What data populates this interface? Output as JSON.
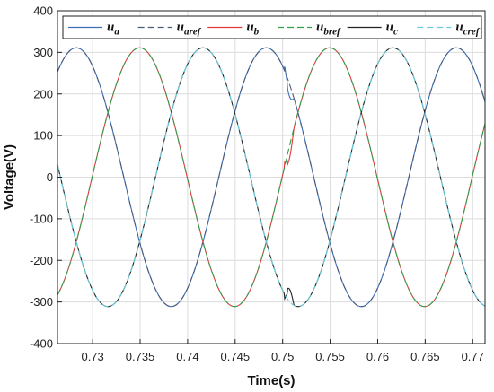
{
  "chart_data": {
    "type": "line",
    "xlabel": "Time(s)",
    "ylabel": "Voltage(V)",
    "xlim": [
      0.7263,
      0.7713
    ],
    "ylim": [
      -400,
      400
    ],
    "x_ticks": [
      "0.73",
      "0.735",
      "0.74",
      "0.745",
      "0.75",
      "0.755",
      "0.76",
      "0.765",
      "0.77"
    ],
    "x_tick_values": [
      0.73,
      0.735,
      0.74,
      0.745,
      0.75,
      0.755,
      0.76,
      0.765,
      0.77
    ],
    "y_ticks": [
      "400",
      "300",
      "200",
      "100",
      "0",
      "-100",
      "-200",
      "-300",
      "-400"
    ],
    "y_tick_values": [
      400,
      300,
      200,
      100,
      0,
      -100,
      -200,
      -300,
      -400
    ],
    "grid": true,
    "legend_position": "top",
    "amplitude": 311,
    "frequency_hz": 50,
    "series": [
      {
        "name": "u",
        "subscript": "a",
        "color": "#3b6fb6",
        "dash": "solid",
        "phase_deg": -59
      },
      {
        "name": "u",
        "subscript": "aref",
        "color": "#4a5a7a",
        "dash": "dashed",
        "phase_deg": -59
      },
      {
        "name": "u",
        "subscript": "b",
        "color": "#e0393b",
        "dash": "solid",
        "phase_deg": -179
      },
      {
        "name": "u",
        "subscript": "bref",
        "color": "#2ea04a",
        "dash": "dashed",
        "phase_deg": -179
      },
      {
        "name": "u",
        "subscript": "c",
        "color": "#222222",
        "dash": "solid",
        "phase_deg": 61
      },
      {
        "name": "u",
        "subscript": "cref",
        "color": "#66ccdd",
        "dash": "dashed",
        "phase_deg": 61
      }
    ],
    "transient": {
      "time": 0.7502,
      "t_end": 0.7512
    }
  }
}
